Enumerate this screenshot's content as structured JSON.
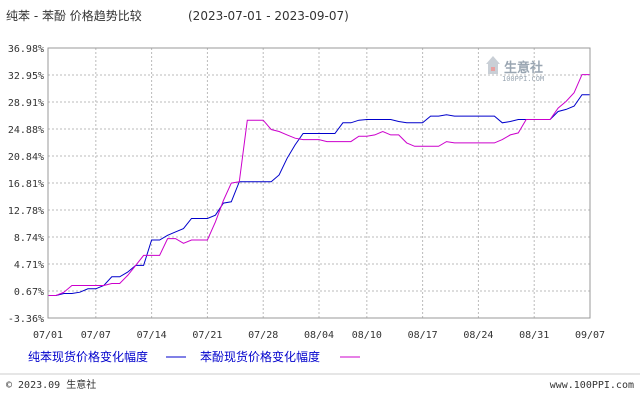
{
  "chart_data": {
    "type": "line",
    "title": "纯苯 - 苯酚 价格趋势比较",
    "date_range": "(2023-07-01 - 2023-09-07)",
    "y_ticks": [
      "36.98%",
      "32.95%",
      "28.91%",
      "24.88%",
      "20.84%",
      "16.81%",
      "12.78%",
      "8.74%",
      "4.71%",
      "0.67%",
      "-3.36%"
    ],
    "y_tick_values": [
      36.98,
      32.95,
      28.91,
      24.88,
      20.84,
      16.81,
      12.78,
      8.74,
      4.71,
      0.67,
      -3.36
    ],
    "ylim": [
      -3.36,
      36.98
    ],
    "x_ticks": [
      "07/01",
      "07/07",
      "07/14",
      "07/21",
      "07/28",
      "08/04",
      "08/10",
      "08/17",
      "08/24",
      "08/31",
      "09/07"
    ],
    "x_tick_days": [
      0,
      6,
      13,
      20,
      27,
      34,
      40,
      47,
      54,
      61,
      68
    ],
    "xlim": [
      0,
      68
    ],
    "grid": true,
    "legend_position": "bottom",
    "series": [
      {
        "name": "纯苯现货价格变化幅度",
        "color": "#0000cc",
        "x": [
          0,
          1,
          2,
          3,
          4,
          5,
          6,
          7,
          8,
          9,
          10,
          11,
          12,
          13,
          14,
          15,
          16,
          17,
          18,
          19,
          20,
          21,
          22,
          23,
          24,
          25,
          26,
          27,
          28,
          29,
          30,
          31,
          32,
          33,
          34,
          35,
          36,
          37,
          38,
          39,
          40,
          41,
          42,
          43,
          44,
          45,
          46,
          47,
          48,
          49,
          50,
          51,
          52,
          53,
          54,
          55,
          56,
          57,
          58,
          59,
          60,
          61,
          62,
          63,
          64,
          65,
          66,
          67,
          68
        ],
        "values": [
          0.0,
          0.0,
          0.3,
          0.3,
          0.5,
          1.0,
          1.0,
          1.5,
          2.8,
          2.8,
          3.5,
          4.5,
          4.5,
          8.3,
          8.3,
          9.0,
          9.5,
          10.0,
          11.5,
          11.5,
          11.5,
          12.0,
          13.8,
          14.0,
          17.0,
          17.0,
          17.0,
          17.0,
          17.0,
          18.0,
          20.5,
          22.5,
          24.2,
          24.2,
          24.2,
          24.2,
          24.2,
          25.8,
          25.8,
          26.2,
          26.3,
          26.3,
          26.3,
          26.3,
          26.0,
          25.8,
          25.8,
          25.8,
          26.8,
          26.8,
          27.0,
          26.8,
          26.8,
          26.8,
          26.8,
          26.8,
          26.8,
          25.8,
          26.0,
          26.3,
          26.3,
          26.3,
          26.3,
          26.3,
          27.5,
          27.8,
          28.3,
          30.0,
          30.0
        ]
      },
      {
        "name": "苯酚现货价格变化幅度",
        "color": "#cc00cc",
        "x": [
          0,
          1,
          2,
          3,
          4,
          5,
          6,
          7,
          8,
          9,
          10,
          11,
          12,
          13,
          14,
          15,
          16,
          17,
          18,
          19,
          20,
          21,
          22,
          23,
          24,
          25,
          26,
          27,
          28,
          29,
          30,
          31,
          32,
          33,
          34,
          35,
          36,
          37,
          38,
          39,
          40,
          41,
          42,
          43,
          44,
          45,
          46,
          47,
          48,
          49,
          50,
          51,
          52,
          53,
          54,
          55,
          56,
          57,
          58,
          59,
          60,
          61,
          62,
          63,
          64,
          65,
          66,
          67,
          68
        ],
        "values": [
          0.0,
          0.0,
          0.5,
          1.5,
          1.5,
          1.5,
          1.5,
          1.5,
          1.8,
          1.8,
          3.0,
          4.5,
          6.0,
          6.0,
          6.0,
          8.5,
          8.5,
          7.8,
          8.3,
          8.3,
          8.3,
          11.0,
          14.2,
          16.8,
          17.0,
          26.2,
          26.2,
          26.2,
          24.8,
          24.5,
          24.0,
          23.5,
          23.3,
          23.3,
          23.3,
          23.0,
          23.0,
          23.0,
          23.0,
          23.8,
          23.8,
          24.0,
          24.5,
          24.0,
          24.0,
          22.8,
          22.3,
          22.3,
          22.3,
          22.3,
          23.0,
          22.8,
          22.8,
          22.8,
          22.8,
          22.8,
          22.8,
          23.3,
          24.0,
          24.3,
          26.3,
          26.3,
          26.3,
          26.3,
          28.0,
          29.0,
          30.3,
          33.0,
          33.0
        ]
      }
    ]
  },
  "footer": {
    "copyright": "© 2023.09 生意社",
    "url": "www.100PPI.com"
  },
  "watermark": {
    "name": "生意社",
    "sub": "100PPI.COM"
  }
}
